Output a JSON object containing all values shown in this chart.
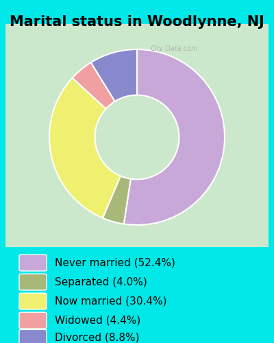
{
  "title": "Marital status in Woodlynne, NJ",
  "slices": [
    52.4,
    4.0,
    30.4,
    4.4,
    8.8
  ],
  "labels": [
    "Never married (52.4%)",
    "Separated (4.0%)",
    "Now married (30.4%)",
    "Widowed (4.4%)",
    "Divorced (8.8%)"
  ],
  "colors": [
    "#c8a8d8",
    "#a8b878",
    "#f0f070",
    "#f0a0a0",
    "#8888cc"
  ],
  "background_outer": "#00e8e8",
  "background_inner": "#d8ecd8",
  "chart_bg_top": "#c8e8d8",
  "chart_bg_bottom": "#d8f0d0",
  "title_fontsize": 15,
  "legend_fontsize": 11,
  "watermark": "City-Data.com",
  "start_angle": 90
}
